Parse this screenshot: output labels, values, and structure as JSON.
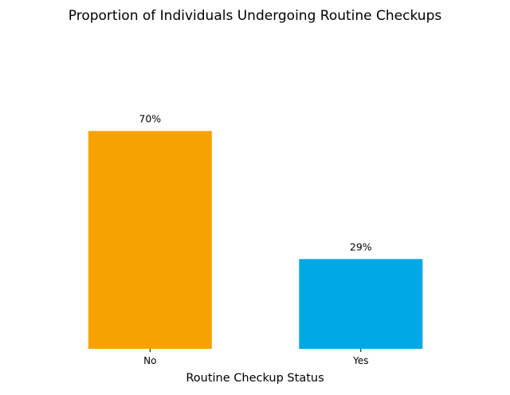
{
  "chart_data": {
    "type": "bar",
    "title": "Proportion of Individuals Undergoing Routine Checkups",
    "xlabel": "Routine Checkup Status",
    "ylabel": "",
    "categories": [
      "No",
      "Yes"
    ],
    "values": [
      70.4,
      29.0
    ],
    "data_labels": [
      "70%",
      "29%"
    ],
    "colors": [
      "#F7A200",
      "#00A8E6"
    ],
    "ylim": [
      0,
      100
    ],
    "grid": false,
    "legend": "none",
    "y_axis_visible": false
  }
}
